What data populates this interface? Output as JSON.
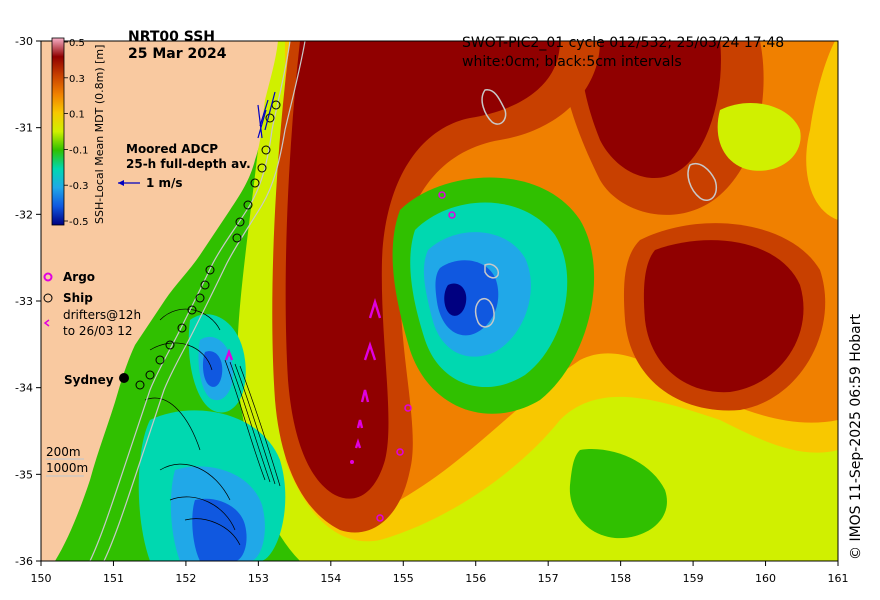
{
  "header": {
    "product": "NRT00 SSH",
    "date": "25 Mar 2024",
    "swot_line1": "SWOT-PIC2_01 cycle 012/532; 25/03/24 17:48",
    "swot_line2": "white:0cm; black:5cm intervals"
  },
  "colorbar": {
    "label": "SSH-Local Mean MDT (0.8m) [m]",
    "ticks": [
      "0.5",
      "0.3",
      "0.1",
      "-0.1",
      "-0.3",
      "-0.5"
    ],
    "stops": [
      "#f8b0c8",
      "#900000",
      "#c84000",
      "#f08000",
      "#f8c800",
      "#d0f000",
      "#30c000",
      "#00d8b0",
      "#20a8e8",
      "#1058e0",
      "#000080"
    ]
  },
  "legend": {
    "adcp_title": "Moored ADCP",
    "adcp_sub": "25-h full-depth av.",
    "adcp_scale": "1 m/s",
    "argo": "Argo",
    "ship": "Ship",
    "drifters_line1": "drifters@12h",
    "drifters_line2": "to 26/03 12",
    "city": "Sydney",
    "depth_200": "200m",
    "depth_1000": "1000m"
  },
  "axes": {
    "x_ticks": [
      "150",
      "151",
      "152",
      "153",
      "154",
      "155",
      "156",
      "157",
      "158",
      "159",
      "160",
      "161"
    ],
    "y_ticks": [
      "-30",
      "-31",
      "-32",
      "-33",
      "-34",
      "-35",
      "-36"
    ]
  },
  "colors": {
    "land": "#f9c9a0",
    "argo": "#e000e0",
    "adcp_arrow": "#0000c0"
  },
  "credit": "© IMOS 11-Sep-2025 06:59 Hobart"
}
